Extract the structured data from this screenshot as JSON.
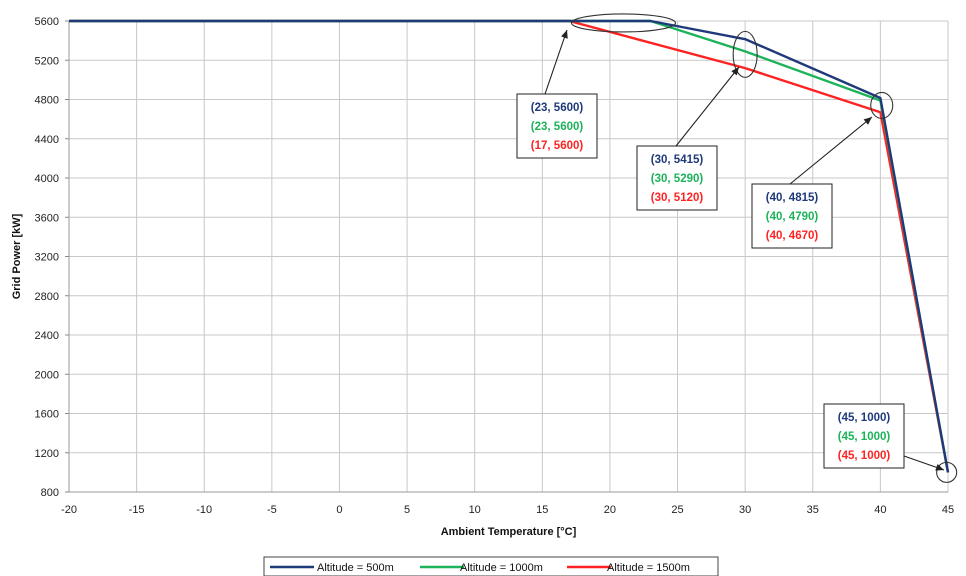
{
  "chart_data": {
    "type": "line",
    "xlabel": "Ambient Temperature [°C]",
    "ylabel": "Grid Power [kW]",
    "xlim": [
      -20,
      45
    ],
    "ylim": [
      800,
      5600
    ],
    "xticks": [
      -20,
      -15,
      -10,
      -5,
      0,
      5,
      10,
      15,
      20,
      25,
      30,
      35,
      40,
      45
    ],
    "yticks": [
      800,
      1200,
      1600,
      2000,
      2400,
      2800,
      3200,
      3600,
      4000,
      4400,
      4800,
      5200,
      5600
    ],
    "grid": true,
    "legend_position": "bottom",
    "series": [
      {
        "name": "Altitude = 500m",
        "color": "#1f3a7a",
        "x": [
          -20,
          23,
          30,
          40,
          45
        ],
        "y": [
          5600,
          5600,
          5415,
          4815,
          1000
        ]
      },
      {
        "name": "Altitude = 1000m",
        "color": "#1db35a",
        "x": [
          -20,
          23,
          30,
          40,
          45
        ],
        "y": [
          5600,
          5600,
          5290,
          4790,
          1000
        ]
      },
      {
        "name": "Altitude = 1500m",
        "color": "#ff2222",
        "x": [
          -20,
          17,
          30,
          40,
          45
        ],
        "y": [
          5600,
          5600,
          5120,
          4670,
          1000
        ]
      }
    ],
    "annotations": [
      {
        "lines": [
          "(23, 5600)",
          "(23, 5600)",
          "(17, 5600)"
        ]
      },
      {
        "lines": [
          "(30, 5415)",
          "(30, 5290)",
          "(30, 5120)"
        ]
      },
      {
        "lines": [
          "(40, 4815)",
          "(40, 4790)",
          "(40, 4670)"
        ]
      },
      {
        "lines": [
          "(45, 1000)",
          "(45, 1000)",
          "(45, 1000)"
        ]
      }
    ]
  }
}
